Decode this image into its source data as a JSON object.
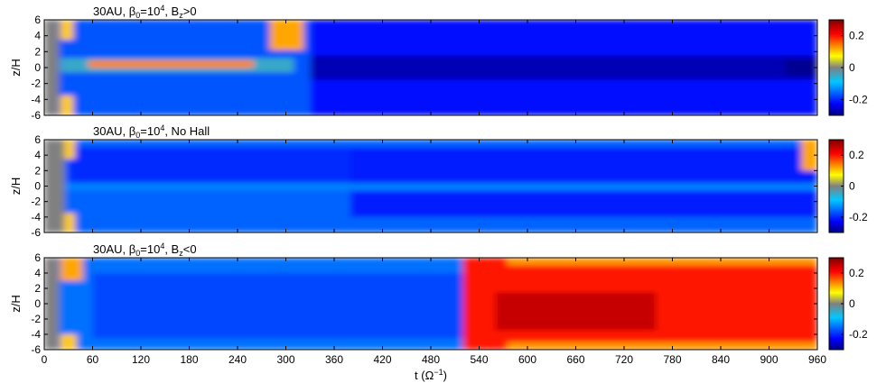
{
  "chart_data": {
    "type": "heatmap",
    "colormap": [
      "#00007f",
      "#0000ff",
      "#00c8ff",
      "#808080",
      "#ffff00",
      "#ff0000",
      "#7f0000"
    ],
    "x_axis": {
      "label_main": "t (",
      "label_sym": "Ω",
      "label_exp": "−1",
      "label_close": ")",
      "range": [
        0,
        960
      ],
      "ticks": [
        "0",
        "60",
        "120",
        "180",
        "240",
        "300",
        "360",
        "420",
        "480",
        "540",
        "600",
        "660",
        "720",
        "780",
        "840",
        "900",
        "960"
      ]
    },
    "colorbar": {
      "range": [
        -0.3,
        0.3
      ],
      "ticks": [
        "0.2",
        "0",
        "-0.2"
      ],
      "tick_values": [
        0.2,
        0,
        -0.2
      ]
    },
    "panels": [
      {
        "title": {
          "prefix": "30AU, β",
          "sub": "0",
          "mid": "=10",
          "sup": "4",
          "suffix_pre": ", B",
          "suffix_sub": "z",
          "suffix_post": ">0"
        },
        "ylabel": "z/H",
        "yrange": [
          -6,
          6
        ],
        "yticks": [
          "6",
          "4",
          "2",
          "0",
          "-2",
          "-4",
          "-6"
        ],
        "regions": [
          {
            "t0": 0,
            "t1": 18,
            "z0": -6,
            "z1": 6,
            "value": 0.0
          },
          {
            "t0": 18,
            "t1": 330,
            "z0": -6,
            "z1": 6,
            "value": -0.17
          },
          {
            "t0": 330,
            "t1": 960,
            "z0": -6,
            "z1": 6,
            "value": -0.22
          },
          {
            "t0": 330,
            "t1": 960,
            "z0": -1.5,
            "z1": 1.5,
            "value": -0.27
          },
          {
            "t0": 20,
            "t1": 310,
            "z0": -0.6,
            "z1": 1.2,
            "value": -0.05
          },
          {
            "t0": 55,
            "t1": 260,
            "z0": 0.0,
            "z1": 0.9,
            "value": 0.14
          },
          {
            "t0": 20,
            "t1": 36,
            "z0": 3.5,
            "z1": 6,
            "value": 0.1
          },
          {
            "t0": 20,
            "t1": 36,
            "z0": -6,
            "z1": -3.5,
            "value": 0.1
          },
          {
            "t0": 280,
            "t1": 322,
            "z0": 2.2,
            "z1": 6,
            "value": 0.12
          },
          {
            "t0": 920,
            "t1": 960,
            "z0": -1,
            "z1": 1,
            "value": -0.29
          }
        ]
      },
      {
        "title": {
          "prefix": "30AU, β",
          "sub": "0",
          "mid": "=10",
          "sup": "4",
          "suffix_pre": ", No Hall",
          "suffix_sub": "",
          "suffix_post": ""
        },
        "ylabel": "z/H",
        "yrange": [
          -6,
          6
        ],
        "yticks": [
          "6",
          "4",
          "2",
          "0",
          "-2",
          "-4",
          "-6"
        ],
        "regions": [
          {
            "t0": 0,
            "t1": 25,
            "z0": -6,
            "z1": 6,
            "value": 0.0
          },
          {
            "t0": 25,
            "t1": 960,
            "z0": -6,
            "z1": 6,
            "value": -0.16
          },
          {
            "t0": 30,
            "t1": 380,
            "z0": 0.5,
            "z1": 5,
            "value": -0.2
          },
          {
            "t0": 380,
            "t1": 960,
            "z0": -4,
            "z1": 5,
            "value": -0.21
          },
          {
            "t0": 25,
            "t1": 960,
            "z0": -0.6,
            "z1": 0.4,
            "value": -0.14
          },
          {
            "t0": 25,
            "t1": 38,
            "z0": 3.5,
            "z1": 6,
            "value": 0.1
          },
          {
            "t0": 25,
            "t1": 38,
            "z0": -6,
            "z1": -3.5,
            "value": 0.1
          },
          {
            "t0": 940,
            "t1": 960,
            "z0": 2,
            "z1": 6,
            "value": 0.12
          }
        ]
      },
      {
        "title": {
          "prefix": "30AU, β",
          "sub": "0",
          "mid": "=10",
          "sup": "4",
          "suffix_pre": ", B",
          "suffix_sub": "z",
          "suffix_post": "<0"
        },
        "ylabel": "z/H",
        "yrange": [
          -6,
          6
        ],
        "yticks": [
          "6",
          "4",
          "2",
          "0",
          "-2",
          "-4",
          "-6"
        ],
        "regions": [
          {
            "t0": 0,
            "t1": 18,
            "z0": -6,
            "z1": 6,
            "value": 0.0
          },
          {
            "t0": 18,
            "t1": 560,
            "z0": -6,
            "z1": 6,
            "value": -0.15
          },
          {
            "t0": 60,
            "t1": 520,
            "z0": -4.5,
            "z1": 4,
            "value": -0.18
          },
          {
            "t0": 20,
            "t1": 48,
            "z0": 3,
            "z1": 6,
            "value": 0.12
          },
          {
            "t0": 20,
            "t1": 40,
            "z0": -6,
            "z1": -4,
            "value": 0.1
          },
          {
            "t0": 520,
            "t1": 960,
            "z0": -6,
            "z1": 6,
            "value": 0.2
          },
          {
            "t0": 575,
            "t1": 960,
            "z0": -6,
            "z1": -5,
            "value": 0.13
          },
          {
            "t0": 575,
            "t1": 960,
            "z0": 5,
            "z1": 6,
            "value": 0.13
          },
          {
            "t0": 560,
            "t1": 760,
            "z0": -3.5,
            "z1": 1.5,
            "value": 0.25
          }
        ]
      }
    ]
  }
}
